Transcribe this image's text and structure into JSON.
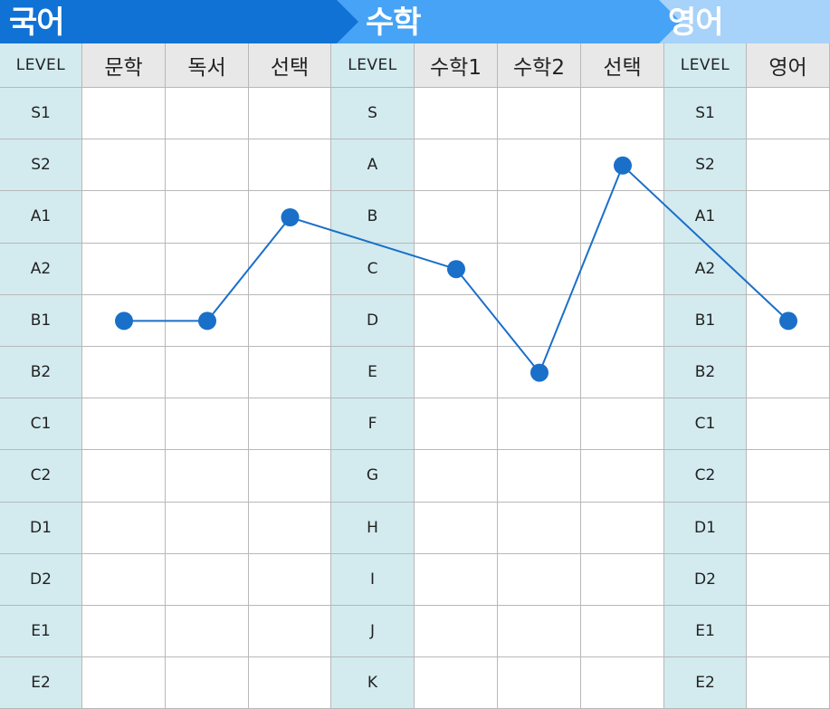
{
  "banner": {
    "korean": "국어",
    "math": "수학",
    "english": "영어"
  },
  "colors": {
    "korean_banner": "#0f72d4",
    "math_banner": "#46a3f5",
    "english_banner": "#a7d2f9",
    "level_column": "#d3ebef",
    "header_row": "#e8e8e8",
    "line": "#1a6fc9"
  },
  "columns": [
    "LEVEL",
    "문학",
    "독서",
    "선택",
    "LEVEL",
    "수학1",
    "수학2",
    "선택",
    "LEVEL",
    "영어"
  ],
  "level_columns": [
    0,
    4,
    8
  ],
  "rows": [
    [
      "S1",
      "S",
      "S1"
    ],
    [
      "S2",
      "A",
      "S2"
    ],
    [
      "A1",
      "B",
      "A1"
    ],
    [
      "A2",
      "C",
      "A2"
    ],
    [
      "B1",
      "D",
      "B1"
    ],
    [
      "B2",
      "E",
      "B2"
    ],
    [
      "C1",
      "F",
      "C1"
    ],
    [
      "C2",
      "G",
      "C2"
    ],
    [
      "D1",
      "H",
      "D1"
    ],
    [
      "D2",
      "I",
      "D2"
    ],
    [
      "E1",
      "J",
      "E1"
    ],
    [
      "E2",
      "K",
      "E2"
    ]
  ],
  "chart_data": {
    "type": "line",
    "series": [
      {
        "points": [
          {
            "subject": "문학",
            "level": "B1"
          },
          {
            "subject": "독서",
            "level": "B1"
          },
          {
            "subject": "선택",
            "level": "A1"
          },
          {
            "subject": "수학1",
            "level": "C"
          },
          {
            "subject": "수학2",
            "level": "E"
          },
          {
            "subject": "선택",
            "level": "A"
          },
          {
            "subject": "영어",
            "level": "B1"
          }
        ],
        "column_index": [
          1,
          2,
          3,
          5,
          6,
          7,
          9
        ],
        "row_index": [
          4,
          4,
          2,
          3,
          5,
          1,
          4
        ]
      }
    ]
  }
}
